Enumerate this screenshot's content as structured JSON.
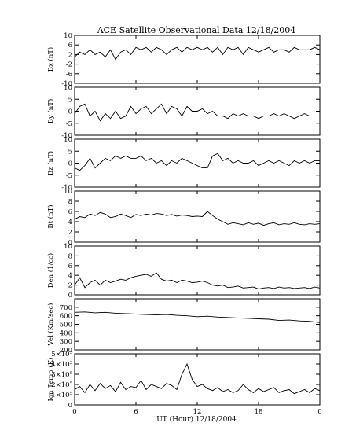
{
  "chart_data": {
    "type": "line",
    "title": "ACE Satellite Observational Data   12/18/2004",
    "xlabel": "UT (Hour)   12/18/2004",
    "x_ticks": [
      "0",
      "6",
      "12",
      "18",
      "0"
    ],
    "xlim": [
      0,
      24
    ],
    "panels": [
      {
        "name": "bx",
        "ylabel": "Bx (nT)",
        "ylim": [
          -10,
          10
        ],
        "y_ticks": [
          "10",
          "6",
          "2",
          "-2",
          "-6",
          "-10"
        ],
        "y_tick_values": [
          10,
          6,
          2,
          -2,
          -6,
          -10
        ],
        "x": [
          0,
          0.5,
          1,
          1.5,
          2,
          2.5,
          3,
          3.5,
          4,
          4.5,
          5,
          5.5,
          6,
          6.5,
          7,
          7.5,
          8,
          8.5,
          9,
          9.5,
          10,
          10.5,
          11,
          11.5,
          12,
          12.5,
          13,
          13.5,
          14,
          14.5,
          15,
          15.5,
          16,
          16.5,
          17,
          17.5,
          18,
          18.5,
          19,
          19.5,
          20,
          20.5,
          21,
          21.5,
          22,
          22.5,
          23,
          23.5,
          24
        ],
        "values": [
          1,
          3,
          2,
          4,
          2,
          3,
          1,
          4,
          0,
          3,
          4,
          2,
          5,
          4,
          5,
          3,
          5,
          4,
          2,
          4,
          5,
          3,
          5,
          4,
          5,
          4,
          5,
          3,
          5,
          2,
          5,
          4,
          5,
          2,
          5,
          4,
          3,
          4,
          5,
          3,
          4,
          4,
          3,
          5,
          4,
          4,
          4,
          5,
          4
        ]
      },
      {
        "name": "by",
        "ylabel": "By (nT)",
        "ylim": [
          -10,
          10
        ],
        "y_ticks": [
          "10",
          "5",
          "0",
          "-5",
          "-10"
        ],
        "y_tick_values": [
          10,
          5,
          0,
          -5,
          -10
        ],
        "x": [
          0,
          0.5,
          1,
          1.5,
          2,
          2.5,
          3,
          3.5,
          4,
          4.5,
          5,
          5.5,
          6,
          6.5,
          7,
          7.5,
          8,
          8.5,
          9,
          9.5,
          10,
          10.5,
          11,
          11.5,
          12,
          12.5,
          13,
          13.5,
          14,
          14.5,
          15,
          15.5,
          16,
          16.5,
          17,
          17.5,
          18,
          18.5,
          19,
          19.5,
          20,
          20.5,
          21,
          21.5,
          22,
          22.5,
          23,
          23.5,
          24
        ],
        "values": [
          -1,
          2,
          3,
          -2,
          0,
          -4,
          -1,
          -3,
          0,
          -3,
          -2,
          2,
          -1,
          1,
          2,
          -1,
          1,
          3,
          -1,
          2,
          1,
          -2,
          2,
          0,
          0,
          1,
          -1,
          0,
          -2,
          -2,
          -3,
          -1,
          -2,
          -1,
          -2,
          -2,
          -3,
          -2,
          -2,
          -1,
          -2,
          -1,
          -2,
          -3,
          -2,
          -1,
          -2,
          -2,
          -2
        ]
      },
      {
        "name": "bz",
        "ylabel": "Bz (nT)",
        "ylim": [
          -10,
          10
        ],
        "y_ticks": [
          "10",
          "5",
          "0",
          "-5",
          "-10"
        ],
        "y_tick_values": [
          10,
          5,
          0,
          -5,
          -10
        ],
        "x": [
          0,
          0.5,
          1,
          1.5,
          2,
          2.5,
          3,
          3.5,
          4,
          4.5,
          5,
          5.5,
          6,
          6.5,
          7,
          7.5,
          8,
          8.5,
          9,
          9.5,
          10,
          10.5,
          11,
          11.5,
          12,
          12.5,
          13,
          13.5,
          14,
          14.5,
          15,
          15.5,
          16,
          16.5,
          17,
          17.5,
          18,
          18.5,
          19,
          19.5,
          20,
          20.5,
          21,
          21.5,
          22,
          22.5,
          23,
          23.5,
          24
        ],
        "values": [
          -2,
          -3,
          -1,
          2,
          -2,
          0,
          2,
          1,
          3,
          2,
          3,
          2,
          2,
          3,
          1,
          2,
          0,
          1,
          -1,
          1,
          0,
          2,
          1,
          0,
          -1,
          -2,
          -2,
          3,
          4,
          1,
          2,
          0,
          1,
          0,
          0,
          1,
          -1,
          0,
          1,
          0,
          1,
          0,
          -1,
          1,
          0,
          1,
          0,
          1,
          1
        ]
      },
      {
        "name": "bt",
        "ylabel": "Bt (nT)",
        "ylim": [
          0,
          10
        ],
        "y_ticks": [
          "10",
          "8",
          "6",
          "4",
          "2",
          "0"
        ],
        "y_tick_values": [
          10,
          8,
          6,
          4,
          2,
          0
        ],
        "x": [
          0,
          0.5,
          1,
          1.5,
          2,
          2.5,
          3,
          3.5,
          4,
          4.5,
          5,
          5.5,
          6,
          6.5,
          7,
          7.5,
          8,
          8.5,
          9,
          9.5,
          10,
          10.5,
          11,
          11.5,
          12,
          12.5,
          13,
          13.5,
          14,
          14.5,
          15,
          15.5,
          16,
          16.5,
          17,
          17.5,
          18,
          18.5,
          19,
          19.5,
          20,
          20.5,
          21,
          21.5,
          22,
          22.5,
          23,
          23.5,
          24
        ],
        "values": [
          4.5,
          5,
          4.8,
          5.5,
          5.2,
          5.8,
          5.5,
          4.8,
          5,
          5.5,
          5.2,
          4.8,
          5.4,
          5.2,
          5.5,
          5.3,
          5.6,
          5.5,
          5.2,
          5.4,
          5.1,
          5.3,
          5.2,
          5,
          5.1,
          5,
          6,
          5.2,
          4.5,
          4,
          3.5,
          3.8,
          3.6,
          3.4,
          3.8,
          3.5,
          3.7,
          3.3,
          3.6,
          3.8,
          3.4,
          3.6,
          3.5,
          3.8,
          3.5,
          3.4,
          3.6,
          3.5,
          3.6
        ]
      },
      {
        "name": "den",
        "ylabel": "Den (1/cc)",
        "ylim": [
          0,
          10
        ],
        "y_ticks": [
          "10",
          "8",
          "6",
          "4",
          "2",
          "0"
        ],
        "y_tick_values": [
          10,
          8,
          6,
          4,
          2,
          0
        ],
        "x": [
          0,
          0.5,
          1,
          1.5,
          2,
          2.5,
          3,
          3.5,
          4,
          4.5,
          5,
          5.5,
          6,
          6.5,
          7,
          7.5,
          8,
          8.5,
          9,
          9.5,
          10,
          10.5,
          11,
          11.5,
          12,
          12.5,
          13,
          13.5,
          14,
          14.5,
          15,
          15.5,
          16,
          16.5,
          17,
          17.5,
          18,
          18.5,
          19,
          19.5,
          20,
          20.5,
          21,
          21.5,
          22,
          22.5,
          23,
          23.5,
          24
        ],
        "values": [
          2,
          3.5,
          1.5,
          2.5,
          3,
          2,
          3,
          2.5,
          2.8,
          3.2,
          3,
          3.5,
          3.8,
          4,
          4.2,
          3.8,
          4.5,
          3.2,
          2.8,
          3,
          2.5,
          3,
          2.8,
          2.5,
          2.6,
          2.8,
          2.5,
          2,
          1.8,
          2,
          1.5,
          1.6,
          1.8,
          1.4,
          1.5,
          1.6,
          1.2,
          1.4,
          1.5,
          1.3,
          1.6,
          1.4,
          1.5,
          1.3,
          1.4,
          1.5,
          1.3,
          1.6,
          1.4
        ]
      },
      {
        "name": "vel",
        "ylabel": "Vel (Km/sec)",
        "ylim": [
          200,
          800
        ],
        "y_ticks": [
          "700",
          "600",
          "500",
          "400",
          "300",
          "200"
        ],
        "y_tick_values": [
          700,
          600,
          500,
          400,
          300,
          200
        ],
        "x": [
          0,
          1,
          2,
          3,
          4,
          5,
          6,
          7,
          8,
          9,
          10,
          11,
          12,
          13,
          14,
          15,
          16,
          17,
          18,
          19,
          20,
          21,
          22,
          23,
          24
        ],
        "values": [
          640,
          645,
          635,
          640,
          630,
          625,
          620,
          615,
          610,
          615,
          605,
          600,
          590,
          595,
          585,
          580,
          575,
          570,
          565,
          560,
          545,
          550,
          540,
          535,
          520
        ]
      },
      {
        "name": "ion-temp",
        "ylabel": "Ion Temp (K)",
        "ylim": [
          0,
          500000
        ],
        "y_ticks": [
          "5×10⁵",
          "4×10⁵",
          "3×10⁵",
          "2×10⁵",
          "1×10⁵",
          "0"
        ],
        "y_tick_values": [
          500000,
          400000,
          300000,
          200000,
          100000,
          0
        ],
        "x": [
          0,
          0.5,
          1,
          1.5,
          2,
          2.5,
          3,
          3.5,
          4,
          4.5,
          5,
          5.5,
          6,
          6.5,
          7,
          7.5,
          8,
          8.5,
          9,
          9.5,
          10,
          10.5,
          11,
          11.5,
          12,
          12.5,
          13,
          13.5,
          14,
          14.5,
          15,
          15.5,
          16,
          16.5,
          17,
          17.5,
          18,
          18.5,
          19,
          19.5,
          20,
          20.5,
          21,
          21.5,
          22,
          22.5,
          23,
          23.5,
          24
        ],
        "values": [
          150000,
          180000,
          120000,
          200000,
          140000,
          210000,
          160000,
          190000,
          130000,
          220000,
          150000,
          180000,
          170000,
          240000,
          150000,
          200000,
          180000,
          160000,
          210000,
          190000,
          150000,
          300000,
          400000,
          250000,
          180000,
          200000,
          160000,
          140000,
          170000,
          130000,
          150000,
          120000,
          140000,
          200000,
          150000,
          120000,
          160000,
          130000,
          150000,
          170000,
          120000,
          140000,
          150000,
          110000,
          130000,
          150000,
          120000,
          160000,
          140000
        ]
      }
    ]
  }
}
